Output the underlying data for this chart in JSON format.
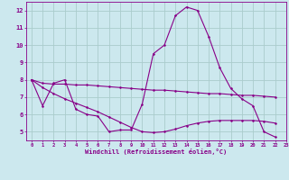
{
  "xlabel": "Windchill (Refroidissement éolien,°C)",
  "bg_color": "#cce8ee",
  "line_color": "#880088",
  "grid_color": "#aacccc",
  "xlim": [
    -0.5,
    23
  ],
  "ylim": [
    4.5,
    12.5
  ],
  "xticks": [
    0,
    1,
    2,
    3,
    4,
    5,
    6,
    7,
    8,
    9,
    10,
    11,
    12,
    13,
    14,
    15,
    16,
    17,
    18,
    19,
    20,
    21,
    22,
    23
  ],
  "yticks": [
    5,
    6,
    7,
    8,
    9,
    10,
    11,
    12
  ],
  "series": [
    [
      8.0,
      6.5,
      7.8,
      8.0,
      6.3,
      6.0,
      5.9,
      5.0,
      5.1,
      5.1,
      6.6,
      9.5,
      10.0,
      11.7,
      12.2,
      12.0,
      10.5,
      8.7,
      7.5,
      6.9,
      6.5,
      5.0,
      4.7
    ],
    [
      8.0,
      7.8,
      7.75,
      7.75,
      7.7,
      7.7,
      7.65,
      7.6,
      7.55,
      7.5,
      7.45,
      7.4,
      7.4,
      7.35,
      7.3,
      7.25,
      7.2,
      7.2,
      7.15,
      7.1,
      7.1,
      7.05,
      7.0
    ],
    [
      8.0,
      7.55,
      7.2,
      6.9,
      6.65,
      6.4,
      6.15,
      5.85,
      5.55,
      5.25,
      5.0,
      4.95,
      5.0,
      5.15,
      5.35,
      5.5,
      5.6,
      5.65,
      5.65,
      5.65,
      5.65,
      5.6,
      5.5
    ]
  ],
  "x_values": [
    0,
    1,
    2,
    3,
    4,
    5,
    6,
    7,
    8,
    9,
    10,
    11,
    12,
    13,
    14,
    15,
    16,
    17,
    18,
    19,
    20,
    21,
    22
  ]
}
